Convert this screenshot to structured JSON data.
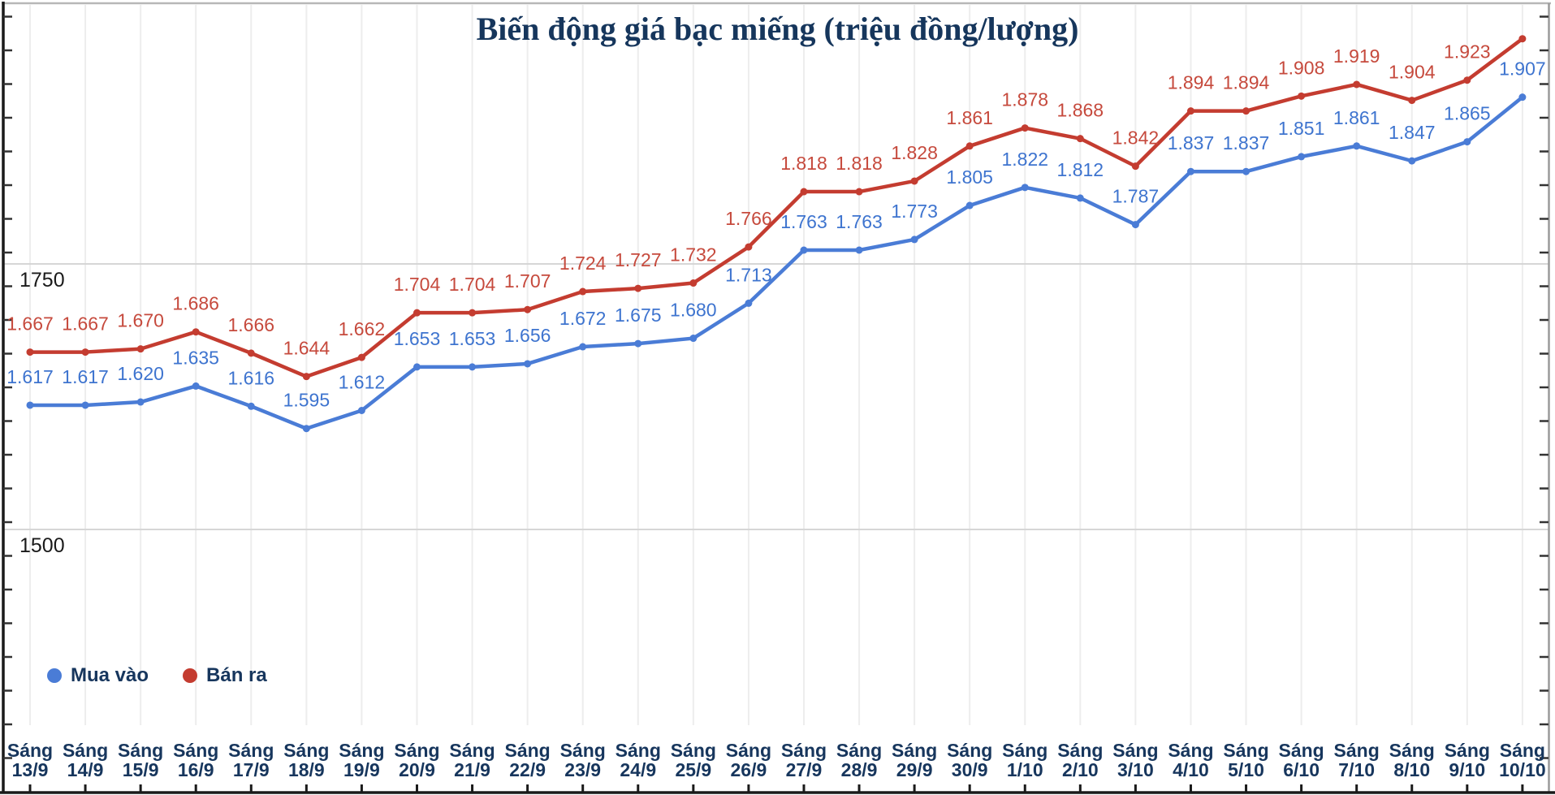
{
  "chart": {
    "title": "Biến động giá bạc miếng (triệu đồng/lượng)"
  },
  "legend": [
    {
      "label": "Mua vào",
      "color": "#4a7cd6"
    },
    {
      "label": "Bán ra",
      "color": "#c43c30"
    }
  ],
  "y_axis": {
    "ticks": [
      {
        "label": "1750",
        "value": 1750
      },
      {
        "label": "1500",
        "value": 1500
      }
    ]
  },
  "colors": {
    "blue_line": "#4a7cd6",
    "blue_label": "#3e74cf",
    "red_line": "#c43c30",
    "red_label": "#c64a3d",
    "navy_text": "#17365d",
    "title_text": "#16365c",
    "h_grid": "#d6d6d6",
    "v_grid": "#ededed",
    "frame_light": "#b7b7b7",
    "frame_dark": "#1a1a1a"
  },
  "chart_data": {
    "type": "line",
    "title": "Biến động giá bạc miếng (triệu đồng/lượng)",
    "legend_position": "bottom-left-inside",
    "grid": "horizontal 1750/1500 + faint vertical per category",
    "ylim_visible": [
      1250,
      1995
    ],
    "y_gridlines": [
      1750,
      1500
    ],
    "y_tick_labels": [
      "1750",
      "1500"
    ],
    "categories": [
      {
        "line1": "Sáng",
        "line2": "13/9"
      },
      {
        "line1": "Sáng",
        "line2": "14/9"
      },
      {
        "line1": "Sáng",
        "line2": "15/9"
      },
      {
        "line1": "Sáng",
        "line2": "16/9"
      },
      {
        "line1": "Sáng",
        "line2": "17/9"
      },
      {
        "line1": "Sáng",
        "line2": "18/9"
      },
      {
        "line1": "Sáng",
        "line2": "19/9"
      },
      {
        "line1": "Sáng",
        "line2": "20/9"
      },
      {
        "line1": "Sáng",
        "line2": "21/9"
      },
      {
        "line1": "Sáng",
        "line2": "22/9"
      },
      {
        "line1": "Sáng",
        "line2": "23/9"
      },
      {
        "line1": "Sáng",
        "line2": "24/9"
      },
      {
        "line1": "Sáng",
        "line2": "25/9"
      },
      {
        "line1": "Sáng",
        "line2": "26/9"
      },
      {
        "line1": "Sáng",
        "line2": "27/9"
      },
      {
        "line1": "Sáng",
        "line2": "28/9"
      },
      {
        "line1": "Sáng",
        "line2": "29/9"
      },
      {
        "line1": "Sáng",
        "line2": "30/9"
      },
      {
        "line1": "Sáng",
        "line2": "1/10"
      },
      {
        "line1": "Sáng",
        "line2": "2/10"
      },
      {
        "line1": "Sáng",
        "line2": "3/10"
      },
      {
        "line1": "Sáng",
        "line2": "4/10"
      },
      {
        "line1": "Sáng",
        "line2": "5/10"
      },
      {
        "line1": "Sáng",
        "line2": "6/10"
      },
      {
        "line1": "Sáng",
        "line2": "7/10"
      },
      {
        "line1": "Sáng",
        "line2": "8/10"
      },
      {
        "line1": "Sáng",
        "line2": "9/10"
      },
      {
        "line1": "Sáng",
        "line2": "10/10"
      }
    ],
    "series": [
      {
        "name": "Mua vào",
        "color": "#4a7cd6",
        "label_color": "#3e74cf",
        "values": [
          1617,
          1617,
          1620,
          1635,
          1616,
          1595,
          1612,
          1653,
          1653,
          1656,
          1672,
          1675,
          1680,
          1713,
          1763,
          1763,
          1773,
          1805,
          1822,
          1812,
          1787,
          1837,
          1837,
          1851,
          1861,
          1847,
          1865,
          1907
        ],
        "labels": [
          "1.617",
          "1.617",
          "1.620",
          "1.635",
          "1.616",
          "1.595",
          "1.612",
          "1.653",
          "1.653",
          "1.656",
          "1.672",
          "1.675",
          "1.680",
          "1.713",
          "1.763",
          "1.763",
          "1.773",
          "1.805",
          "1.822",
          "1.812",
          "1.787",
          "1.837",
          "1.837",
          "1.851",
          "1.861",
          "1.847",
          "1.865",
          "1.907"
        ]
      },
      {
        "name": "Bán ra",
        "color": "#c43c30",
        "label_color": "#c64a3d",
        "values": [
          1667,
          1667,
          1670,
          1686,
          1666,
          1644,
          1662,
          1704,
          1704,
          1707,
          1724,
          1727,
          1732,
          1766,
          1818,
          1818,
          1828,
          1861,
          1878,
          1868,
          1842,
          1894,
          1894,
          1908,
          1919,
          1904,
          1923,
          1962
        ],
        "labels": [
          "1.667",
          "1.667",
          "1.670",
          "1.686",
          "1.666",
          "1.644",
          "1.662",
          "1.704",
          "1.704",
          "1.707",
          "1.724",
          "1.727",
          "1.732",
          "1.766",
          "1.818",
          "1.818",
          "1.828",
          "1.861",
          "1.878",
          "1.868",
          "1.842",
          "1.894",
          "1.894",
          "1.908",
          "1.919",
          "1.904",
          "1.923",
          null
        ],
        "note": "last point (10/10) value estimated from pixels; its label is cut off above the plot edge"
      }
    ]
  }
}
